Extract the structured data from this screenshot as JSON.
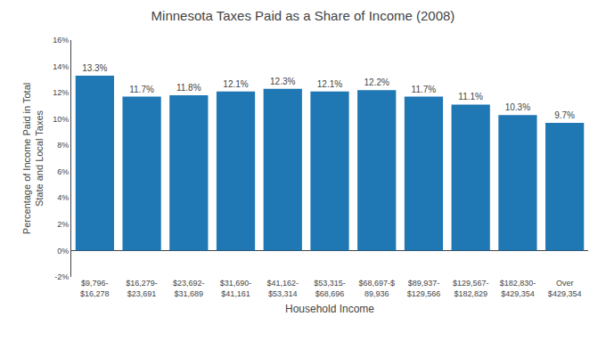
{
  "chart_data": {
    "type": "bar",
    "title": "Minnesota Taxes Paid as a Share of Income (2008)",
    "xlabel": "Household Income",
    "ylabel": "Percentage of Income Paid in Total\nState and Local Taxes",
    "categories": [
      "$9,796-\n$16,278",
      "$16,279-\n$23,691",
      "$23,692-\n$31,689",
      "$31,690-\n$41,161",
      "$41,162-\n$53,314",
      "$53,315-\n$68,696",
      "$68,697-$\n89,936",
      "$89,937-\n$129,566",
      "$129,567-\n$182,829",
      "$182,830-\n$429,354",
      "Over\n$429,354"
    ],
    "values": [
      13.3,
      11.7,
      11.8,
      12.1,
      12.3,
      12.1,
      12.2,
      11.7,
      11.1,
      10.3,
      9.7
    ],
    "value_labels": [
      "13.3%",
      "11.7%",
      "11.8%",
      "12.1%",
      "12.3%",
      "12.1%",
      "12.2%",
      "11.7%",
      "11.1%",
      "10.3%",
      "9.7%"
    ],
    "data_labels": true,
    "ylim": [
      -2,
      16
    ],
    "yticks": [
      {
        "value": -2,
        "label": "-2%"
      },
      {
        "value": 0,
        "label": "0%"
      },
      {
        "value": 2,
        "label": "2%"
      },
      {
        "value": 4,
        "label": "4%"
      },
      {
        "value": 6,
        "label": "6%"
      },
      {
        "value": 8,
        "label": "8%"
      },
      {
        "value": 10,
        "label": "10%"
      },
      {
        "value": 12,
        "label": "12%"
      },
      {
        "value": 14,
        "label": "14%"
      },
      {
        "value": 16,
        "label": "16%"
      }
    ],
    "grid": false
  }
}
